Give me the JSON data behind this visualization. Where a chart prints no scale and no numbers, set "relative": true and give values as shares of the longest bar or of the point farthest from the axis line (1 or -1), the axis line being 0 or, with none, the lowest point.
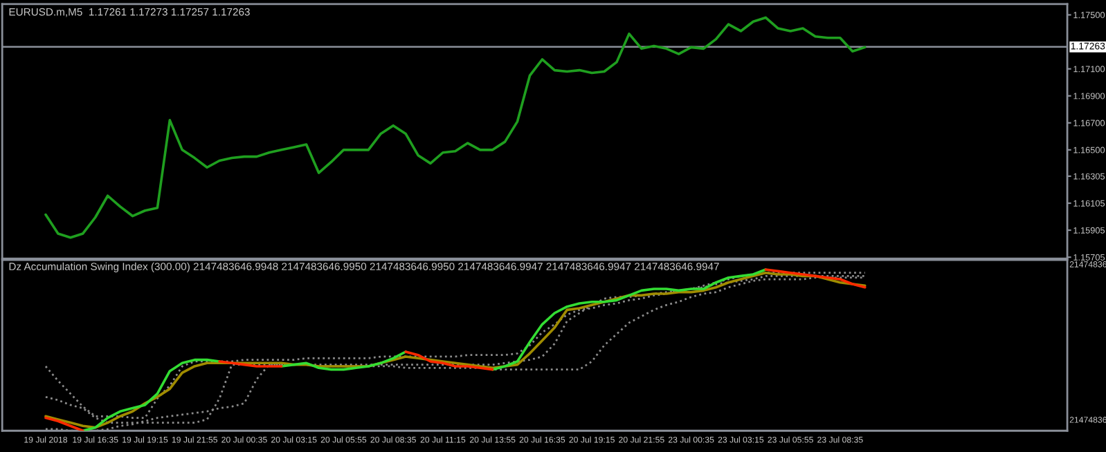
{
  "chart_data": [
    {
      "type": "line",
      "title": "EURUSD.m,M5  1.17261 1.17273 1.17257 1.17263",
      "tick_labels": "y",
      "grid": false,
      "categories": [
        null,
        null,
        null,
        null,
        null,
        null,
        null,
        null,
        null,
        null,
        null,
        null,
        null,
        null,
        null,
        null,
        null,
        null,
        null,
        null,
        null,
        null,
        null,
        null,
        null,
        null,
        null,
        null,
        null,
        null,
        null,
        null,
        null,
        null,
        null,
        null,
        null,
        null,
        null,
        null,
        null,
        null,
        null,
        null,
        null,
        null,
        null,
        null,
        null,
        null,
        null,
        null,
        null,
        null,
        null,
        null,
        null,
        null,
        null,
        null,
        null,
        null,
        null,
        null,
        null,
        null,
        null
      ],
      "ylim": [
        1.15695,
        1.1758
      ],
      "yticks": [
        {
          "value": 1.175,
          "label": "1.17500"
        },
        {
          "value": 1.171,
          "label": "1.17100"
        },
        {
          "value": 1.169,
          "label": "1.16900"
        },
        {
          "value": 1.167,
          "label": "1.16700"
        },
        {
          "value": 1.165,
          "label": "1.16500"
        },
        {
          "value": 1.16305,
          "label": "1.16305"
        },
        {
          "value": 1.16105,
          "label": "1.16105"
        },
        {
          "value": 1.15905,
          "label": "1.15905"
        },
        {
          "value": 1.15705,
          "label": "1.15705"
        }
      ],
      "ref_lines": [
        {
          "axis": "y",
          "value": 1.17263,
          "label": "1.17263",
          "color": "#8a8f99",
          "line_style": "solid"
        }
      ],
      "series": [
        {
          "color": "#1f9f1f",
          "line_style": "solid",
          "values": [
            1.1602,
            1.1588,
            1.1585,
            1.1588,
            1.16,
            1.1616,
            1.1608,
            1.1601,
            1.1605,
            1.1607,
            1.1672,
            1.165,
            1.1644,
            1.1637,
            1.1642,
            1.1644,
            1.1645,
            1.1645,
            1.1648,
            1.165,
            1.1652,
            1.1654,
            1.1633,
            1.1641,
            1.165,
            1.165,
            1.165,
            1.1662,
            1.1668,
            1.1662,
            1.1646,
            1.164,
            1.1648,
            1.1649,
            1.1655,
            1.165,
            1.165,
            1.1656,
            1.1671,
            1.1705,
            1.1717,
            1.1709,
            1.1708,
            1.1709,
            1.1707,
            1.1708,
            1.1715,
            1.1736,
            1.1725,
            1.1727,
            1.1725,
            1.1721,
            1.1726,
            1.1725,
            1.1732,
            1.1743,
            1.1738,
            1.1745,
            1.1748,
            1.174,
            1.1738,
            1.174,
            1.1734,
            1.1733,
            1.1733,
            1.1723,
            1.1726
          ]
        }
      ]
    },
    {
      "type": "line",
      "relative": true,
      "grid": false,
      "title": "Dz Accumulation Swing Index (300.00) 2147483646.9948 2147483646.9950 2147483646.9950 2147483646.9947 2147483646.9947 2147483646.9947",
      "annotations": [
        "21474836",
        "21474836"
      ],
      "categories": [
        "19 Jul 2018",
        null,
        null,
        null,
        "19 Jul 16:35",
        null,
        null,
        null,
        "19 Jul 19:15",
        null,
        null,
        null,
        "19 Jul 21:55",
        null,
        null,
        null,
        "20 Jul 00:35",
        null,
        null,
        null,
        "20 Jul 03:15",
        null,
        null,
        null,
        "20 Jul 05:55",
        null,
        null,
        null,
        "20 Jul 08:35",
        null,
        null,
        null,
        "20 Jul 11:15",
        null,
        null,
        null,
        "20 Jul 13:55",
        null,
        null,
        null,
        "20 Jul 16:35",
        null,
        null,
        null,
        "20 Jul 19:15",
        null,
        null,
        null,
        "20 Jul 21:55",
        null,
        null,
        null,
        "23 Jul 00:35",
        null,
        null,
        null,
        "23 Jul 03:15",
        null,
        null,
        null,
        "23 Jul 05:55",
        null,
        null,
        null,
        "23 Jul 08:35",
        null,
        null
      ],
      "series": [
        {
          "color": "#8c8c8c",
          "line_style": "dotted",
          "values": [
            0.4,
            0.31,
            0.23,
            0.15,
            0.09,
            0.09,
            0.09,
            0.08,
            0.08,
            0.2,
            0.28,
            0.4,
            0.43,
            0.43,
            0.43,
            0.43,
            0.44,
            0.44,
            0.44,
            0.44,
            0.44,
            0.45,
            0.45,
            0.45,
            0.45,
            0.45,
            0.45,
            0.46,
            0.46,
            0.46,
            0.46,
            0.46,
            0.46,
            0.46,
            0.47,
            0.47,
            0.47,
            0.47,
            0.48,
            0.53,
            0.61,
            0.66,
            0.72,
            0.75,
            0.76,
            0.78,
            0.79,
            0.81,
            0.82,
            0.84,
            0.85,
            0.87,
            0.88,
            0.9,
            0.92,
            0.94,
            0.96,
            0.97,
            0.98,
            0.98,
            0.98,
            0.98,
            0.98,
            0.98,
            0.98,
            0.98,
            0.98
          ]
        },
        {
          "color": "#8c8c8c",
          "line_style": "dotted",
          "values": [
            0.21,
            0.19,
            0.16,
            0.14,
            0.08,
            0.05,
            0.05,
            0.05,
            0.05,
            0.05,
            0.05,
            0.05,
            0.05,
            0.07,
            0.2,
            0.41,
            0.41,
            0.41,
            0.41,
            0.41,
            0.41,
            0.41,
            0.41,
            0.41,
            0.41,
            0.41,
            0.41,
            0.41,
            0.41,
            0.41,
            0.41,
            0.41,
            0.41,
            0.41,
            0.41,
            0.41,
            0.41,
            0.42,
            0.43,
            0.44,
            0.46,
            0.54,
            0.68,
            0.73,
            0.78,
            0.82,
            0.83,
            0.83,
            0.84,
            0.85,
            0.86,
            0.87,
            0.88,
            0.89,
            0.91,
            0.92,
            0.93,
            0.94,
            0.96,
            0.96,
            0.96,
            0.96,
            0.96,
            0.96,
            0.96,
            0.96,
            0.96
          ]
        },
        {
          "color": "#8c8c8c",
          "line_style": "dotted",
          "values": [
            0.01,
            0.01,
            0.0,
            0.0,
            0.0,
            0.01,
            0.03,
            0.04,
            0.06,
            0.08,
            0.09,
            0.1,
            0.11,
            0.12,
            0.14,
            0.15,
            0.17,
            0.32,
            0.41,
            0.41,
            0.41,
            0.41,
            0.4,
            0.4,
            0.4,
            0.4,
            0.4,
            0.4,
            0.4,
            0.39,
            0.39,
            0.39,
            0.39,
            0.39,
            0.39,
            0.39,
            0.38,
            0.38,
            0.38,
            0.38,
            0.38,
            0.38,
            0.38,
            0.38,
            0.43,
            0.53,
            0.6,
            0.67,
            0.71,
            0.75,
            0.78,
            0.8,
            0.83,
            0.85,
            0.86,
            0.89,
            0.91,
            0.93,
            0.94,
            0.94,
            0.94,
            0.94,
            0.95,
            0.95,
            0.95,
            0.95,
            0.95
          ]
        },
        {
          "color": "#a08c00",
          "line_style": "solid",
          "values": [
            0.09,
            0.07,
            0.05,
            0.03,
            0.02,
            0.05,
            0.09,
            0.12,
            0.17,
            0.21,
            0.26,
            0.36,
            0.4,
            0.42,
            0.42,
            0.42,
            0.42,
            0.42,
            0.42,
            0.42,
            0.41,
            0.41,
            0.4,
            0.4,
            0.4,
            0.4,
            0.4,
            0.42,
            0.44,
            0.46,
            0.45,
            0.44,
            0.43,
            0.42,
            0.41,
            0.4,
            0.39,
            0.4,
            0.41,
            0.48,
            0.56,
            0.64,
            0.75,
            0.76,
            0.78,
            0.8,
            0.82,
            0.84,
            0.84,
            0.85,
            0.85,
            0.86,
            0.86,
            0.87,
            0.89,
            0.92,
            0.94,
            0.96,
            0.98,
            0.97,
            0.97,
            0.96,
            0.96,
            0.94,
            0.92,
            0.91,
            0.9
          ]
        },
        {
          "color": "#33dd33",
          "line_style": "solid",
          "values": [
            null,
            null,
            null,
            0.0,
            0.02,
            0.08,
            0.12,
            0.14,
            0.16,
            0.23,
            0.37,
            0.42,
            0.44,
            0.44,
            0.43,
            null,
            null,
            null,
            null,
            0.4,
            0.41,
            0.42,
            0.39,
            0.38,
            0.38,
            0.39,
            0.4,
            0.42,
            0.45,
            0.49,
            null,
            null,
            null,
            null,
            null,
            null,
            0.38,
            0.4,
            0.43,
            0.55,
            0.66,
            0.73,
            0.77,
            0.79,
            0.8,
            0.8,
            0.81,
            0.84,
            0.87,
            0.88,
            0.88,
            0.87,
            0.88,
            0.88,
            0.92,
            0.95,
            0.96,
            0.97,
            1.0,
            null,
            null,
            null,
            null,
            null,
            null,
            null,
            null
          ]
        },
        {
          "color": "#ff2a00",
          "line_style": "solid",
          "values": [
            0.08,
            0.06,
            0.03,
            0.0,
            null,
            null,
            null,
            null,
            null,
            null,
            null,
            null,
            null,
            null,
            0.43,
            0.42,
            0.41,
            0.4,
            0.4,
            0.4,
            null,
            null,
            null,
            null,
            null,
            null,
            null,
            null,
            null,
            0.49,
            0.47,
            0.43,
            0.42,
            0.4,
            0.4,
            0.39,
            0.38,
            null,
            null,
            null,
            null,
            null,
            null,
            null,
            null,
            null,
            null,
            null,
            null,
            null,
            null,
            null,
            null,
            null,
            null,
            null,
            null,
            null,
            1.0,
            0.99,
            0.98,
            0.97,
            0.96,
            0.95,
            0.94,
            0.91,
            0.89
          ]
        }
      ]
    }
  ]
}
